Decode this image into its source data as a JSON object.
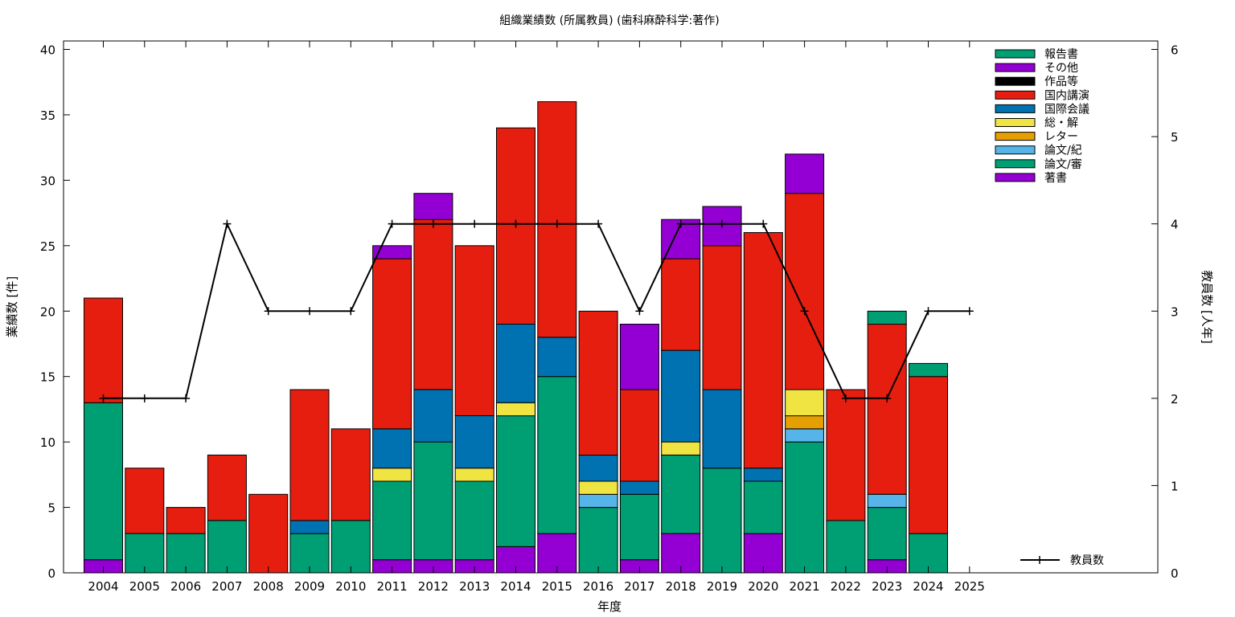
{
  "chart_data": {
    "type": "bar",
    "stacked": true,
    "title": "組織業績数 (所属教員) (歯科麻酔科学:著作)",
    "xlabel": "年度",
    "ylabel": "業績数 [件]",
    "y2label": "教員数 [人年]",
    "ylim": [
      0,
      40
    ],
    "y2lim": [
      0,
      6
    ],
    "grid": false,
    "legend_position": "top-right",
    "categories": [
      "2004",
      "2005",
      "2006",
      "2007",
      "2008",
      "2009",
      "2010",
      "2011",
      "2012",
      "2013",
      "2014",
      "2015",
      "2016",
      "2017",
      "2018",
      "2019",
      "2020",
      "2021",
      "2022",
      "2023",
      "2024",
      "2025"
    ],
    "series": [
      {
        "name": "著書",
        "color": "#9400D3",
        "values": [
          1,
          0,
          0,
          0,
          0,
          0,
          0,
          1,
          1,
          1,
          2,
          3,
          0,
          1,
          3,
          0,
          3,
          0,
          0,
          1,
          0,
          0
        ]
      },
      {
        "name": "論文/審",
        "color": "#009E73",
        "values": [
          12,
          3,
          3,
          4,
          0,
          3,
          4,
          6,
          9,
          6,
          10,
          12,
          5,
          5,
          6,
          8,
          4,
          10,
          4,
          4,
          3,
          0
        ]
      },
      {
        "name": "論文/紀",
        "color": "#56B4E9",
        "values": [
          0,
          0,
          0,
          0,
          0,
          0,
          0,
          0,
          0,
          0,
          0,
          0,
          1,
          0,
          0,
          0,
          0,
          1,
          0,
          1,
          0,
          0
        ]
      },
      {
        "name": "レター",
        "color": "#E69F00",
        "values": [
          0,
          0,
          0,
          0,
          0,
          0,
          0,
          0,
          0,
          0,
          0,
          0,
          0,
          0,
          0,
          0,
          0,
          1,
          0,
          0,
          0,
          0
        ]
      },
      {
        "name": "総・解",
        "color": "#F0E442",
        "values": [
          0,
          0,
          0,
          0,
          0,
          0,
          0,
          1,
          0,
          1,
          1,
          0,
          1,
          0,
          1,
          0,
          0,
          2,
          0,
          0,
          0,
          0
        ]
      },
      {
        "name": "国際会議",
        "color": "#0072B2",
        "values": [
          0,
          0,
          0,
          0,
          0,
          1,
          0,
          3,
          4,
          4,
          6,
          3,
          2,
          1,
          7,
          6,
          1,
          0,
          0,
          0,
          0,
          0
        ]
      },
      {
        "name": "国内講演",
        "color": "#E51E10",
        "values": [
          8,
          5,
          2,
          5,
          6,
          10,
          7,
          13,
          13,
          13,
          15,
          18,
          11,
          7,
          7,
          11,
          18,
          15,
          10,
          13,
          12,
          0
        ]
      },
      {
        "name": "作品等",
        "color": "#000000",
        "values": [
          0,
          0,
          0,
          0,
          0,
          0,
          0,
          0,
          0,
          0,
          0,
          0,
          0,
          0,
          0,
          0,
          0,
          0,
          0,
          0,
          0,
          0
        ]
      },
      {
        "name": "その他",
        "color": "#9400D3",
        "values": [
          0,
          0,
          0,
          0,
          0,
          0,
          0,
          1,
          2,
          0,
          0,
          0,
          0,
          5,
          3,
          3,
          0,
          3,
          0,
          0,
          0,
          0
        ]
      },
      {
        "name": "報告書",
        "color": "#009E73",
        "values": [
          0,
          0,
          0,
          0,
          0,
          0,
          0,
          0,
          0,
          0,
          0,
          0,
          0,
          0,
          0,
          0,
          0,
          0,
          0,
          1,
          1,
          0
        ]
      }
    ],
    "legend_order": [
      "報告書",
      "その他",
      "作品等",
      "国内講演",
      "国際会議",
      "総・解",
      "レター",
      "論文/紀",
      "論文/審",
      "著書"
    ],
    "line_series": {
      "name": "教員数",
      "axis": "y2",
      "color": "#000000",
      "values": [
        2,
        2,
        2,
        4,
        3,
        3,
        3,
        4,
        4,
        4,
        4,
        4,
        4,
        3,
        4,
        4,
        4,
        3,
        2,
        2,
        3,
        3
      ]
    },
    "yticks": [
      0,
      5,
      10,
      15,
      20,
      25,
      30,
      35,
      40
    ],
    "y2ticks": [
      0,
      1,
      2,
      3,
      4,
      5,
      6
    ]
  }
}
